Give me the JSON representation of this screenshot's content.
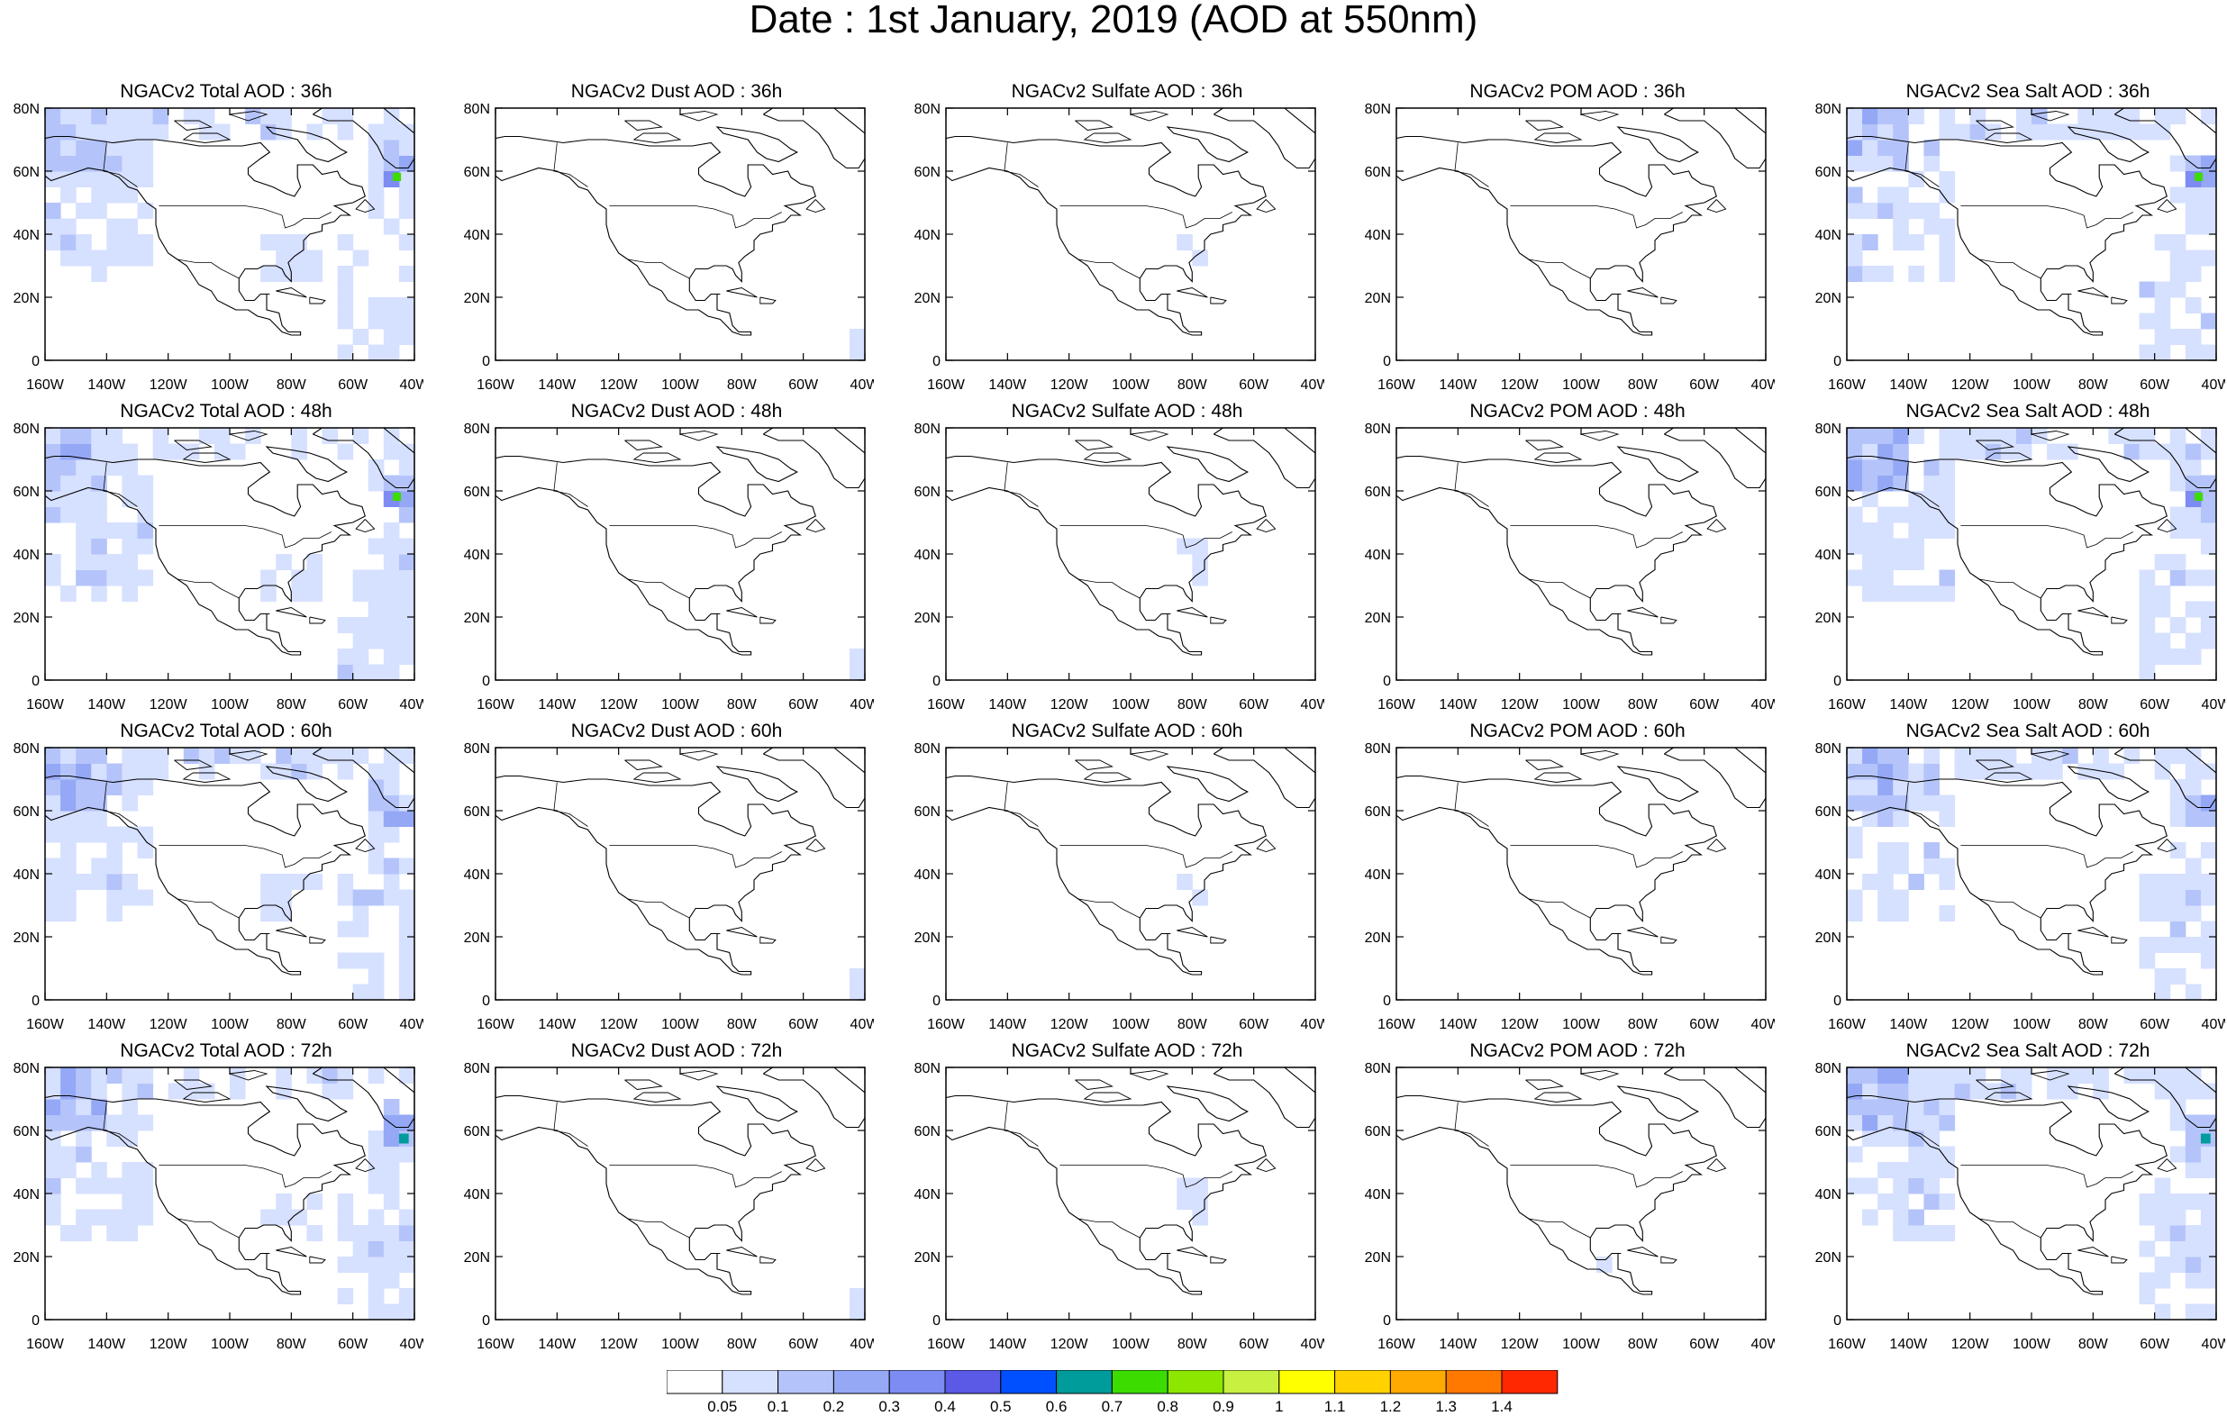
{
  "title": "Date : 1st January, 2019 (AOD at 550nm)",
  "lat_labels": [
    "80N",
    "60N",
    "40N",
    "20N",
    "0"
  ],
  "lon_labels": [
    "160W",
    "140W",
    "120W",
    "100W",
    "80W",
    "60W",
    "40W"
  ],
  "panels": [
    {
      "title": "NGACv2 Total AOD : 36h",
      "species": "total",
      "hour": 36
    },
    {
      "title": "NGACv2 Dust AOD : 36h",
      "species": "dust",
      "hour": 36
    },
    {
      "title": "NGACv2 Sulfate AOD : 36h",
      "species": "sulfate",
      "hour": 36
    },
    {
      "title": "NGACv2 POM AOD : 36h",
      "species": "pom",
      "hour": 36
    },
    {
      "title": "NGACv2 Sea Salt AOD : 36h",
      "species": "seasalt",
      "hour": 36
    },
    {
      "title": "NGACv2 Total AOD : 48h",
      "species": "total",
      "hour": 48
    },
    {
      "title": "NGACv2 Dust AOD : 48h",
      "species": "dust",
      "hour": 48
    },
    {
      "title": "NGACv2 Sulfate AOD : 48h",
      "species": "sulfate",
      "hour": 48
    },
    {
      "title": "NGACv2 POM AOD : 48h",
      "species": "pom",
      "hour": 48
    },
    {
      "title": "NGACv2 Sea Salt AOD : 48h",
      "species": "seasalt",
      "hour": 48
    },
    {
      "title": "NGACv2 Total AOD : 60h",
      "species": "total",
      "hour": 60
    },
    {
      "title": "NGACv2 Dust AOD : 60h",
      "species": "dust",
      "hour": 60
    },
    {
      "title": "NGACv2 Sulfate AOD : 60h",
      "species": "sulfate",
      "hour": 60
    },
    {
      "title": "NGACv2 POM AOD : 60h",
      "species": "pom",
      "hour": 60
    },
    {
      "title": "NGACv2 Sea Salt AOD : 60h",
      "species": "seasalt",
      "hour": 60
    },
    {
      "title": "NGACv2 Total AOD : 72h",
      "species": "total",
      "hour": 72
    },
    {
      "title": "NGACv2 Dust AOD : 72h",
      "species": "dust",
      "hour": 72
    },
    {
      "title": "NGACv2 Sulfate AOD : 72h",
      "species": "sulfate",
      "hour": 72
    },
    {
      "title": "NGACv2 POM AOD : 72h",
      "species": "pom",
      "hour": 72
    },
    {
      "title": "NGACv2 Sea Salt  AOD : 72h",
      "species": "seasalt",
      "hour": 72
    }
  ],
  "colorbar": {
    "labels": [
      "0.05",
      "0.1",
      "0.2",
      "0.3",
      "0.4",
      "0.5",
      "0.6",
      "0.7",
      "0.8",
      "0.9",
      "1",
      "1.1",
      "1.2",
      "1.3",
      "1.4"
    ],
    "colors": [
      "#ffffff",
      "#d6e0ff",
      "#b4c4fa",
      "#94a8f6",
      "#7d8cf2",
      "#5a5ae6",
      "#0050ff",
      "#009b9b",
      "#3cdc00",
      "#8ce600",
      "#c8f040",
      "#ffff00",
      "#ffd200",
      "#ffaa00",
      "#ff7800",
      "#ff2800"
    ]
  }
}
